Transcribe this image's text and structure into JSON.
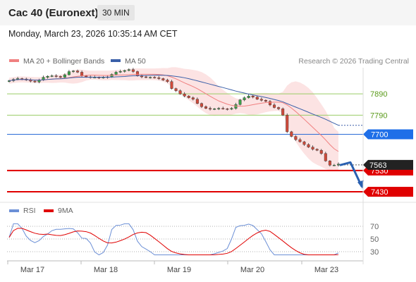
{
  "header": {
    "title": "Cac 40 (Euronext)",
    "timeframe": "30 MIN",
    "date": "Monday, March 23, 2026 10:35:14 AM CET"
  },
  "chart_data": [
    {
      "type": "line",
      "title": "Cac 40 (Euronext)",
      "legend": [
        {
          "name": "MA 20 + Bollinger Bands",
          "color": "#f08080"
        },
        {
          "name": "MA 50",
          "color": "#3a5fa8"
        }
      ],
      "legend_position": "top-left",
      "credit": "Research © 2026 Trading Central",
      "ylim": [
        7390,
        8010
      ],
      "x_labels": [
        "Mar 17",
        "Mar 18",
        "Mar 19",
        "Mar 20",
        "Mar 23"
      ],
      "levels": [
        {
          "label": "7890",
          "value": 7890,
          "color": "#9acd66",
          "style": "resistance"
        },
        {
          "label": "7790",
          "value": 7790,
          "color": "#9acd66",
          "style": "resistance"
        },
        {
          "label": "7700",
          "value": 7700,
          "color": "#2a6bd6",
          "style": "pivot"
        },
        {
          "label": "7530",
          "value": 7530,
          "color": "#e00000",
          "style": "support"
        },
        {
          "label": "7430",
          "value": 7430,
          "color": "#e00000",
          "style": "support"
        }
      ],
      "last_price": {
        "label": "7563",
        "value": 7563
      },
      "close": [
        7952,
        7958,
        7962,
        7960,
        7955,
        7950,
        7946,
        7955,
        7968,
        7973,
        7975,
        7972,
        7968,
        7980,
        7995,
        7998,
        7992,
        7975,
        7970,
        7968,
        7968,
        7966,
        7968,
        7970,
        7982,
        7992,
        7996,
        8000,
        8004,
        7995,
        7975,
        7970,
        7968,
        7968,
        7966,
        7962,
        7955,
        7948,
        7915,
        7905,
        7890,
        7880,
        7872,
        7865,
        7845,
        7830,
        7822,
        7818,
        7820,
        7822,
        7820,
        7818,
        7822,
        7840,
        7862,
        7872,
        7880,
        7875,
        7865,
        7860,
        7855,
        7838,
        7826,
        7820,
        7790,
        7712,
        7690,
        7675,
        7665,
        7652,
        7640,
        7630,
        7625,
        7610,
        7575,
        7555,
        7555,
        7560
      ]
    },
    {
      "type": "line",
      "title": "",
      "legend": [
        {
          "name": "RSI",
          "color": "#6b8fd6"
        },
        {
          "name": "9MA",
          "color": "#e00000"
        }
      ],
      "levels": [
        {
          "label": "70",
          "value": 70
        },
        {
          "label": "50",
          "value": 50
        },
        {
          "label": "30",
          "value": 30
        }
      ],
      "ylim": [
        20,
        80
      ]
    }
  ]
}
